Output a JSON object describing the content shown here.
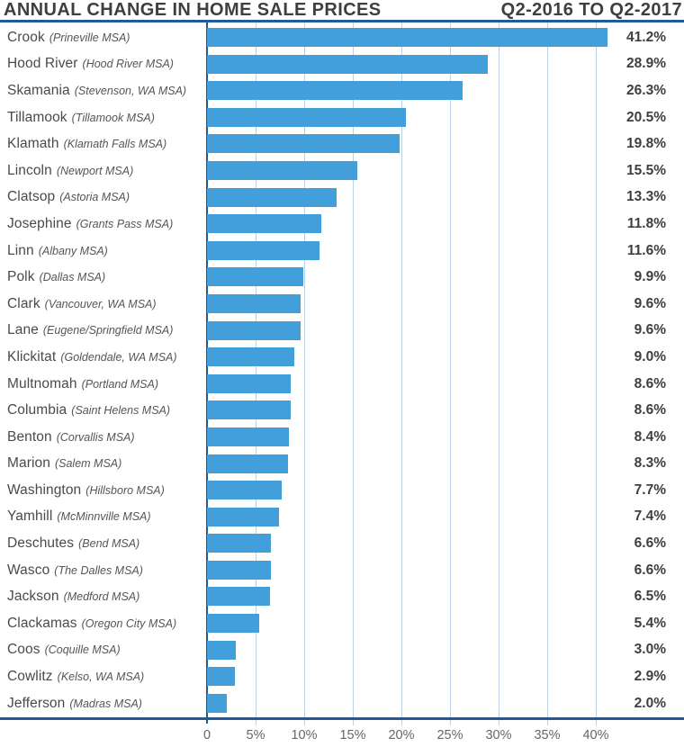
{
  "header": {
    "title_left": "ANNUAL CHANGE IN HOME SALE PRICES",
    "title_right": "Q2-2016 TO Q2-2017"
  },
  "chart_data": {
    "type": "bar",
    "orientation": "horizontal",
    "title": "Annual Change in Home Sale Prices",
    "subtitle": "Q2-2016 to Q2-2017",
    "xlabel": "",
    "ylabel": "",
    "xlim": [
      0,
      45
    ],
    "grid": true,
    "value_suffix": "%",
    "axis_ticks": [
      {
        "value": 0,
        "label": "0"
      },
      {
        "value": 5,
        "label": "5%"
      },
      {
        "value": 10,
        "label": "10%"
      },
      {
        "value": 15,
        "label": "15%"
      },
      {
        "value": 20,
        "label": "20%"
      },
      {
        "value": 25,
        "label": "25%"
      },
      {
        "value": 30,
        "label": "30%"
      },
      {
        "value": 35,
        "label": "35%"
      },
      {
        "value": 40,
        "label": "40%"
      }
    ],
    "rows": [
      {
        "county": "Crook",
        "msa": "(Prineville MSA)",
        "value": 41.2,
        "label": "41.2%"
      },
      {
        "county": "Hood River",
        "msa": "(Hood River MSA)",
        "value": 28.9,
        "label": "28.9%"
      },
      {
        "county": "Skamania",
        "msa": "(Stevenson, WA MSA)",
        "value": 26.3,
        "label": "26.3%"
      },
      {
        "county": "Tillamook",
        "msa": "(Tillamook MSA)",
        "value": 20.5,
        "label": "20.5%"
      },
      {
        "county": "Klamath",
        "msa": "(Klamath Falls MSA)",
        "value": 19.8,
        "label": "19.8%"
      },
      {
        "county": "Lincoln",
        "msa": "(Newport MSA)",
        "value": 15.5,
        "label": "15.5%"
      },
      {
        "county": "Clatsop",
        "msa": "(Astoria MSA)",
        "value": 13.3,
        "label": "13.3%"
      },
      {
        "county": "Josephine",
        "msa": "(Grants Pass MSA)",
        "value": 11.8,
        "label": "11.8%"
      },
      {
        "county": "Linn",
        "msa": "(Albany MSA)",
        "value": 11.6,
        "label": "11.6%"
      },
      {
        "county": "Polk",
        "msa": "(Dallas MSA)",
        "value": 9.9,
        "label": "9.9%"
      },
      {
        "county": "Clark",
        "msa": "(Vancouver, WA MSA)",
        "value": 9.6,
        "label": "9.6%"
      },
      {
        "county": "Lane",
        "msa": "(Eugene/Springfield MSA)",
        "value": 9.6,
        "label": "9.6%"
      },
      {
        "county": "Klickitat",
        "msa": "(Goldendale, WA MSA)",
        "value": 9.0,
        "label": "9.0%"
      },
      {
        "county": "Multnomah",
        "msa": "(Portland MSA)",
        "value": 8.6,
        "label": "8.6%"
      },
      {
        "county": "Columbia",
        "msa": "(Saint Helens MSA)",
        "value": 8.6,
        "label": "8.6%"
      },
      {
        "county": "Benton",
        "msa": "(Corvallis MSA)",
        "value": 8.4,
        "label": "8.4%"
      },
      {
        "county": "Marion",
        "msa": "(Salem MSA)",
        "value": 8.3,
        "label": "8.3%"
      },
      {
        "county": "Washington",
        "msa": "(Hillsboro MSA)",
        "value": 7.7,
        "label": "7.7%"
      },
      {
        "county": "Yamhill",
        "msa": "(McMinnville MSA)",
        "value": 7.4,
        "label": "7.4%"
      },
      {
        "county": "Deschutes",
        "msa": "(Bend MSA)",
        "value": 6.6,
        "label": "6.6%"
      },
      {
        "county": "Wasco",
        "msa": "(The Dalles MSA)",
        "value": 6.6,
        "label": "6.6%"
      },
      {
        "county": "Jackson",
        "msa": "(Medford MSA)",
        "value": 6.5,
        "label": "6.5%"
      },
      {
        "county": "Clackamas",
        "msa": "(Oregon City MSA)",
        "value": 5.4,
        "label": "5.4%"
      },
      {
        "county": "Coos",
        "msa": "(Coquille MSA)",
        "value": 3.0,
        "label": "3.0%"
      },
      {
        "county": "Cowlitz",
        "msa": "(Kelso, WA MSA)",
        "value": 2.9,
        "label": "2.9%"
      },
      {
        "county": "Jefferson",
        "msa": "(Madras MSA)",
        "value": 2.0,
        "label": "2.0%"
      }
    ],
    "colors": {
      "bar": "#429fd9",
      "axis_line": "#1e5b99",
      "gridline": "#bdd2e6",
      "title_text": "#3f3f3f",
      "label_text": "#4a4a4a",
      "value_text": "#3f3f3f",
      "tick_text": "#666666"
    }
  }
}
